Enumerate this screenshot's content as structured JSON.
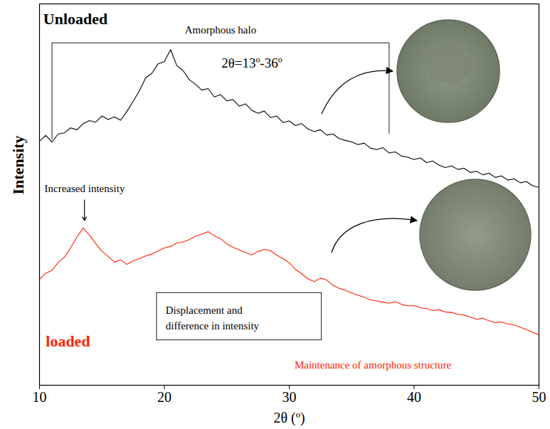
{
  "chart_data": {
    "type": "line",
    "x_label": "2θ (º)",
    "y_label": "Intensity",
    "x": [
      10,
      10.5,
      11,
      11.5,
      12,
      12.5,
      13,
      13.5,
      14,
      14.5,
      15,
      15.5,
      16,
      16.5,
      17,
      17.5,
      18,
      18.5,
      19,
      19.5,
      20,
      20.5,
      21,
      21.5,
      22,
      22.5,
      23,
      23.5,
      24,
      24.5,
      25,
      25.5,
      26,
      26.5,
      27,
      27.5,
      28,
      28.5,
      29,
      29.5,
      30,
      30.5,
      31,
      31.5,
      32,
      32.5,
      33,
      33.5,
      34,
      34.5,
      35,
      35.5,
      36,
      36.5,
      37,
      37.5,
      38,
      38.5,
      39,
      39.5,
      40,
      40.5,
      41,
      41.5,
      42,
      42.5,
      43,
      43.5,
      44,
      44.5,
      45,
      45.5,
      46,
      46.5,
      47,
      47.5,
      48,
      48.5,
      49,
      49.5,
      50
    ],
    "series": [
      {
        "name": "Unloaded",
        "color": "#000000",
        "values": [
          64,
          65.5,
          63.8,
          65.9,
          66.2,
          67.5,
          67,
          68.6,
          69.4,
          69,
          70.6,
          69.7,
          70.4,
          69.5,
          71.8,
          74.5,
          77.2,
          80.6,
          81.8,
          84.3,
          84.9,
          88,
          83.8,
          82.5,
          80.1,
          78.9,
          77.4,
          77.8,
          75.6,
          76.2,
          74.6,
          74.9,
          73.2,
          73.8,
          72.1,
          71.3,
          71.9,
          70.2,
          70.6,
          68.9,
          69.3,
          68.1,
          68.6,
          67.2,
          66.5,
          67,
          65.6,
          65.9,
          64.7,
          64.2,
          63.8,
          63.1,
          63.5,
          62.2,
          61.8,
          62.3,
          60.9,
          61.2,
          60.1,
          59.8,
          59.2,
          59.6,
          58.4,
          58.8,
          57.7,
          57.1,
          57.5,
          56.6,
          56.9,
          55.8,
          56.1,
          55.2,
          55.6,
          54.5,
          54.9,
          53.8,
          54.1,
          53.1,
          53.4,
          52.3,
          51.9
        ]
      },
      {
        "name": "loaded",
        "color": "#ff2200",
        "values": [
          27.8,
          29.4,
          30.1,
          32.2,
          33.6,
          36.1,
          38.9,
          41.2,
          39.4,
          37.2,
          35.1,
          33.8,
          32.3,
          32.9,
          31.7,
          32.6,
          33.2,
          33.9,
          34.4,
          35.2,
          36,
          36.4,
          37.3,
          37.6,
          38.2,
          39.1,
          39.6,
          40.3,
          39.2,
          38.4,
          37.1,
          36.2,
          35.5,
          34.8,
          34.2,
          35.1,
          35.6,
          35.3,
          34.1,
          33.2,
          32.1,
          30.4,
          29.2,
          27.9,
          27.2,
          28.1,
          27.6,
          26.2,
          25.4,
          24.9,
          24.2,
          23.6,
          23.1,
          22.4,
          22.1,
          21.8,
          21.5,
          21.9,
          21.2,
          20.8,
          20.9,
          20.3,
          20.1,
          19.6,
          19.8,
          19.2,
          19.1,
          18.6,
          18.4,
          17.9,
          17.3,
          17.6,
          16.9,
          16.4,
          16.6,
          16.1,
          15.8,
          15.2,
          14.6,
          13.9,
          13.2
        ]
      }
    ],
    "xlim": [
      10,
      50
    ],
    "xticks": [
      10,
      20,
      30,
      40,
      50
    ],
    "ylim": [
      0,
      100
    ],
    "yticks": [],
    "tick_labels": "x",
    "grid": false,
    "annotations": [
      {
        "text": "Amorphous halo",
        "color": "#000000"
      },
      {
        "text": "2θ=13º-36º",
        "color": "#000000"
      },
      {
        "text": "Increased intensity",
        "color": "#000000"
      },
      {
        "text": "Displacement and difference in intensity",
        "color": "#000000"
      },
      {
        "text": "Maintenance of amorphous structure",
        "color": "#ff2200"
      }
    ]
  }
}
